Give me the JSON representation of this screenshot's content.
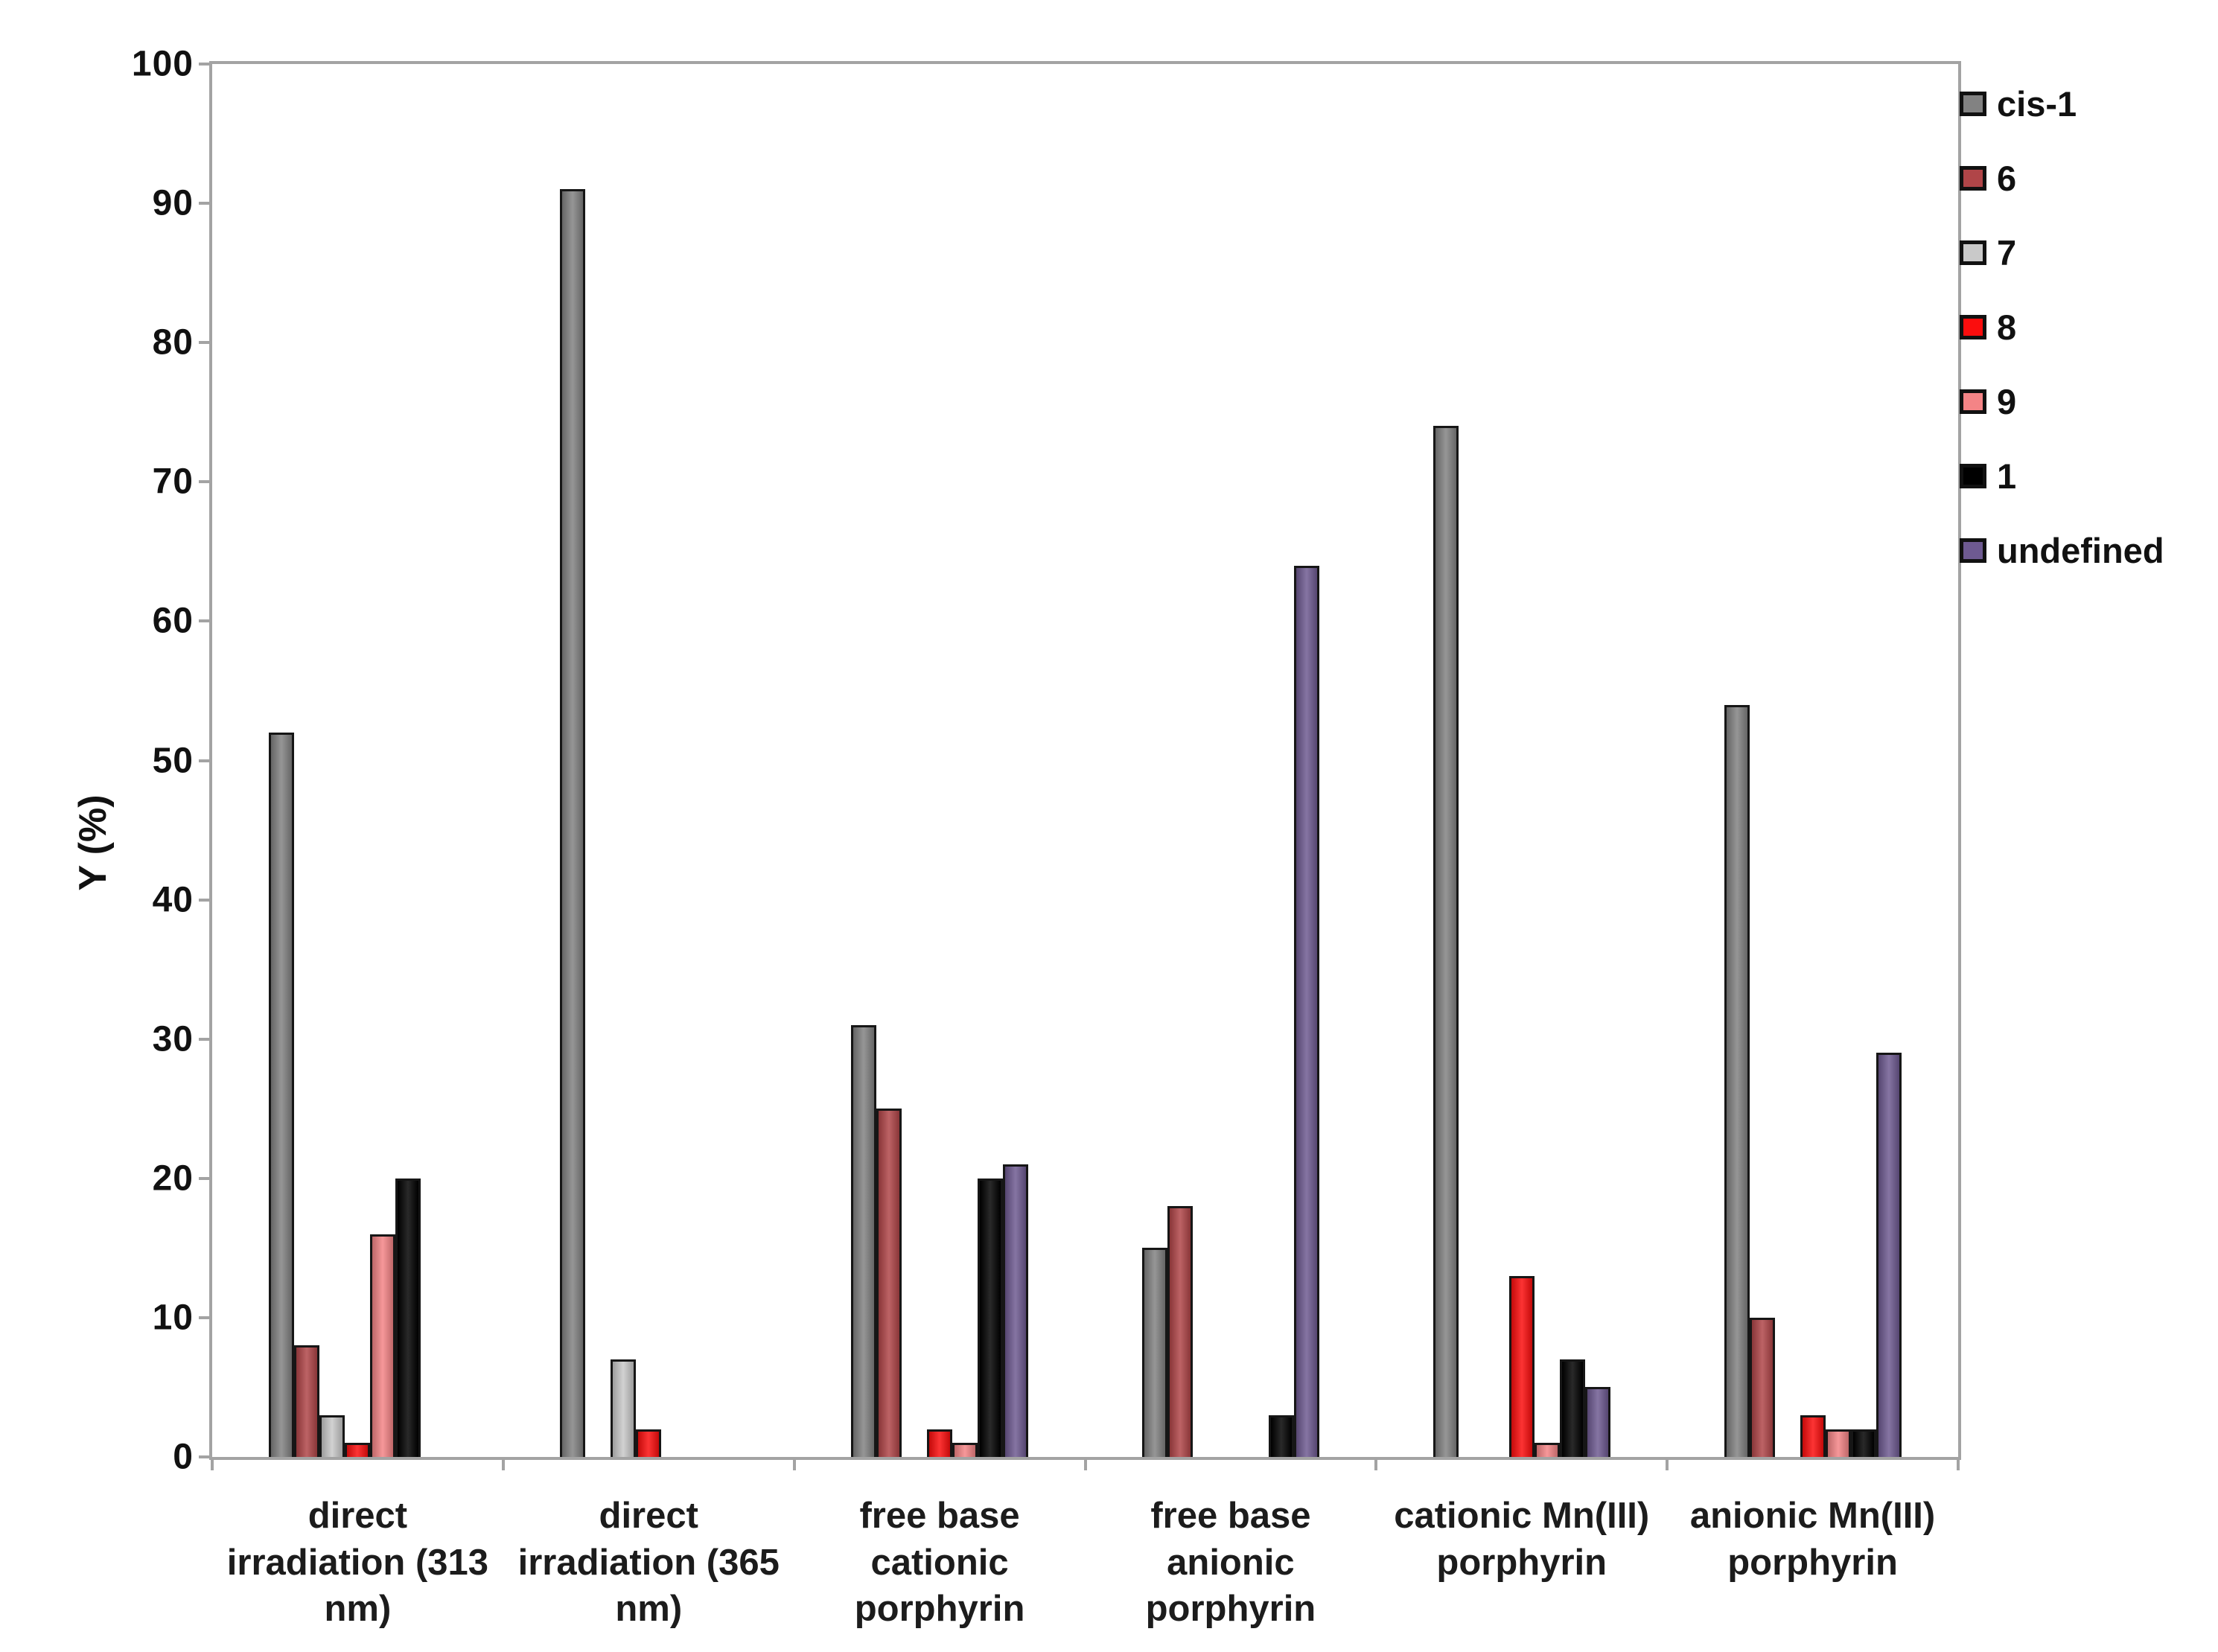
{
  "chart_data": {
    "type": "bar",
    "title": "",
    "ylabel": "Y (%)",
    "ylim": [
      0,
      100
    ],
    "ytick_step": 10,
    "yticks": [
      0,
      10,
      20,
      30,
      40,
      50,
      60,
      70,
      80,
      90,
      100
    ],
    "grid": "off",
    "legend_position": "right",
    "categories": [
      {
        "label": "direct irradiation (313 nm)",
        "lines": [
          "direct",
          "irradiation (313",
          "nm)"
        ]
      },
      {
        "label": "direct irradiation (365 nm)",
        "lines": [
          "direct",
          "irradiation (365",
          "nm)"
        ]
      },
      {
        "label": "free base cationic porphyrin",
        "lines": [
          "free base",
          "cationic",
          "porphyrin"
        ]
      },
      {
        "label": "free base anionic porphyrin",
        "lines": [
          "free base",
          "anionic",
          "porphyrin"
        ]
      },
      {
        "label": "cationic Mn(III) porphyrin",
        "lines": [
          "cationic Mn(III)",
          "porphyrin"
        ]
      },
      {
        "label": "anionic Mn(III) porphyrin",
        "lines": [
          "anionic Mn(III)",
          "porphyrin"
        ]
      }
    ],
    "series": [
      {
        "name": "cis-1",
        "color": "#828282",
        "values": [
          52,
          91,
          31,
          15,
          74,
          54
        ]
      },
      {
        "name": "6",
        "color": "#b04548",
        "values": [
          8,
          0,
          25,
          18,
          0,
          10
        ]
      },
      {
        "name": "7",
        "color": "#c9c9c9",
        "values": [
          3,
          7,
          0,
          0,
          0,
          0
        ]
      },
      {
        "name": "8",
        "color": "#fb0d0d",
        "values": [
          1,
          2,
          2,
          0,
          13,
          3
        ]
      },
      {
        "name": "9",
        "color": "#f48486",
        "values": [
          16,
          0,
          1,
          0,
          1,
          2
        ]
      },
      {
        "name": "1",
        "color": "#000000",
        "values": [
          20,
          0,
          20,
          3,
          7,
          2
        ]
      },
      {
        "name": "undefined",
        "color": "#6e5a91",
        "values": [
          0,
          0,
          21,
          64,
          5,
          29
        ]
      }
    ]
  }
}
